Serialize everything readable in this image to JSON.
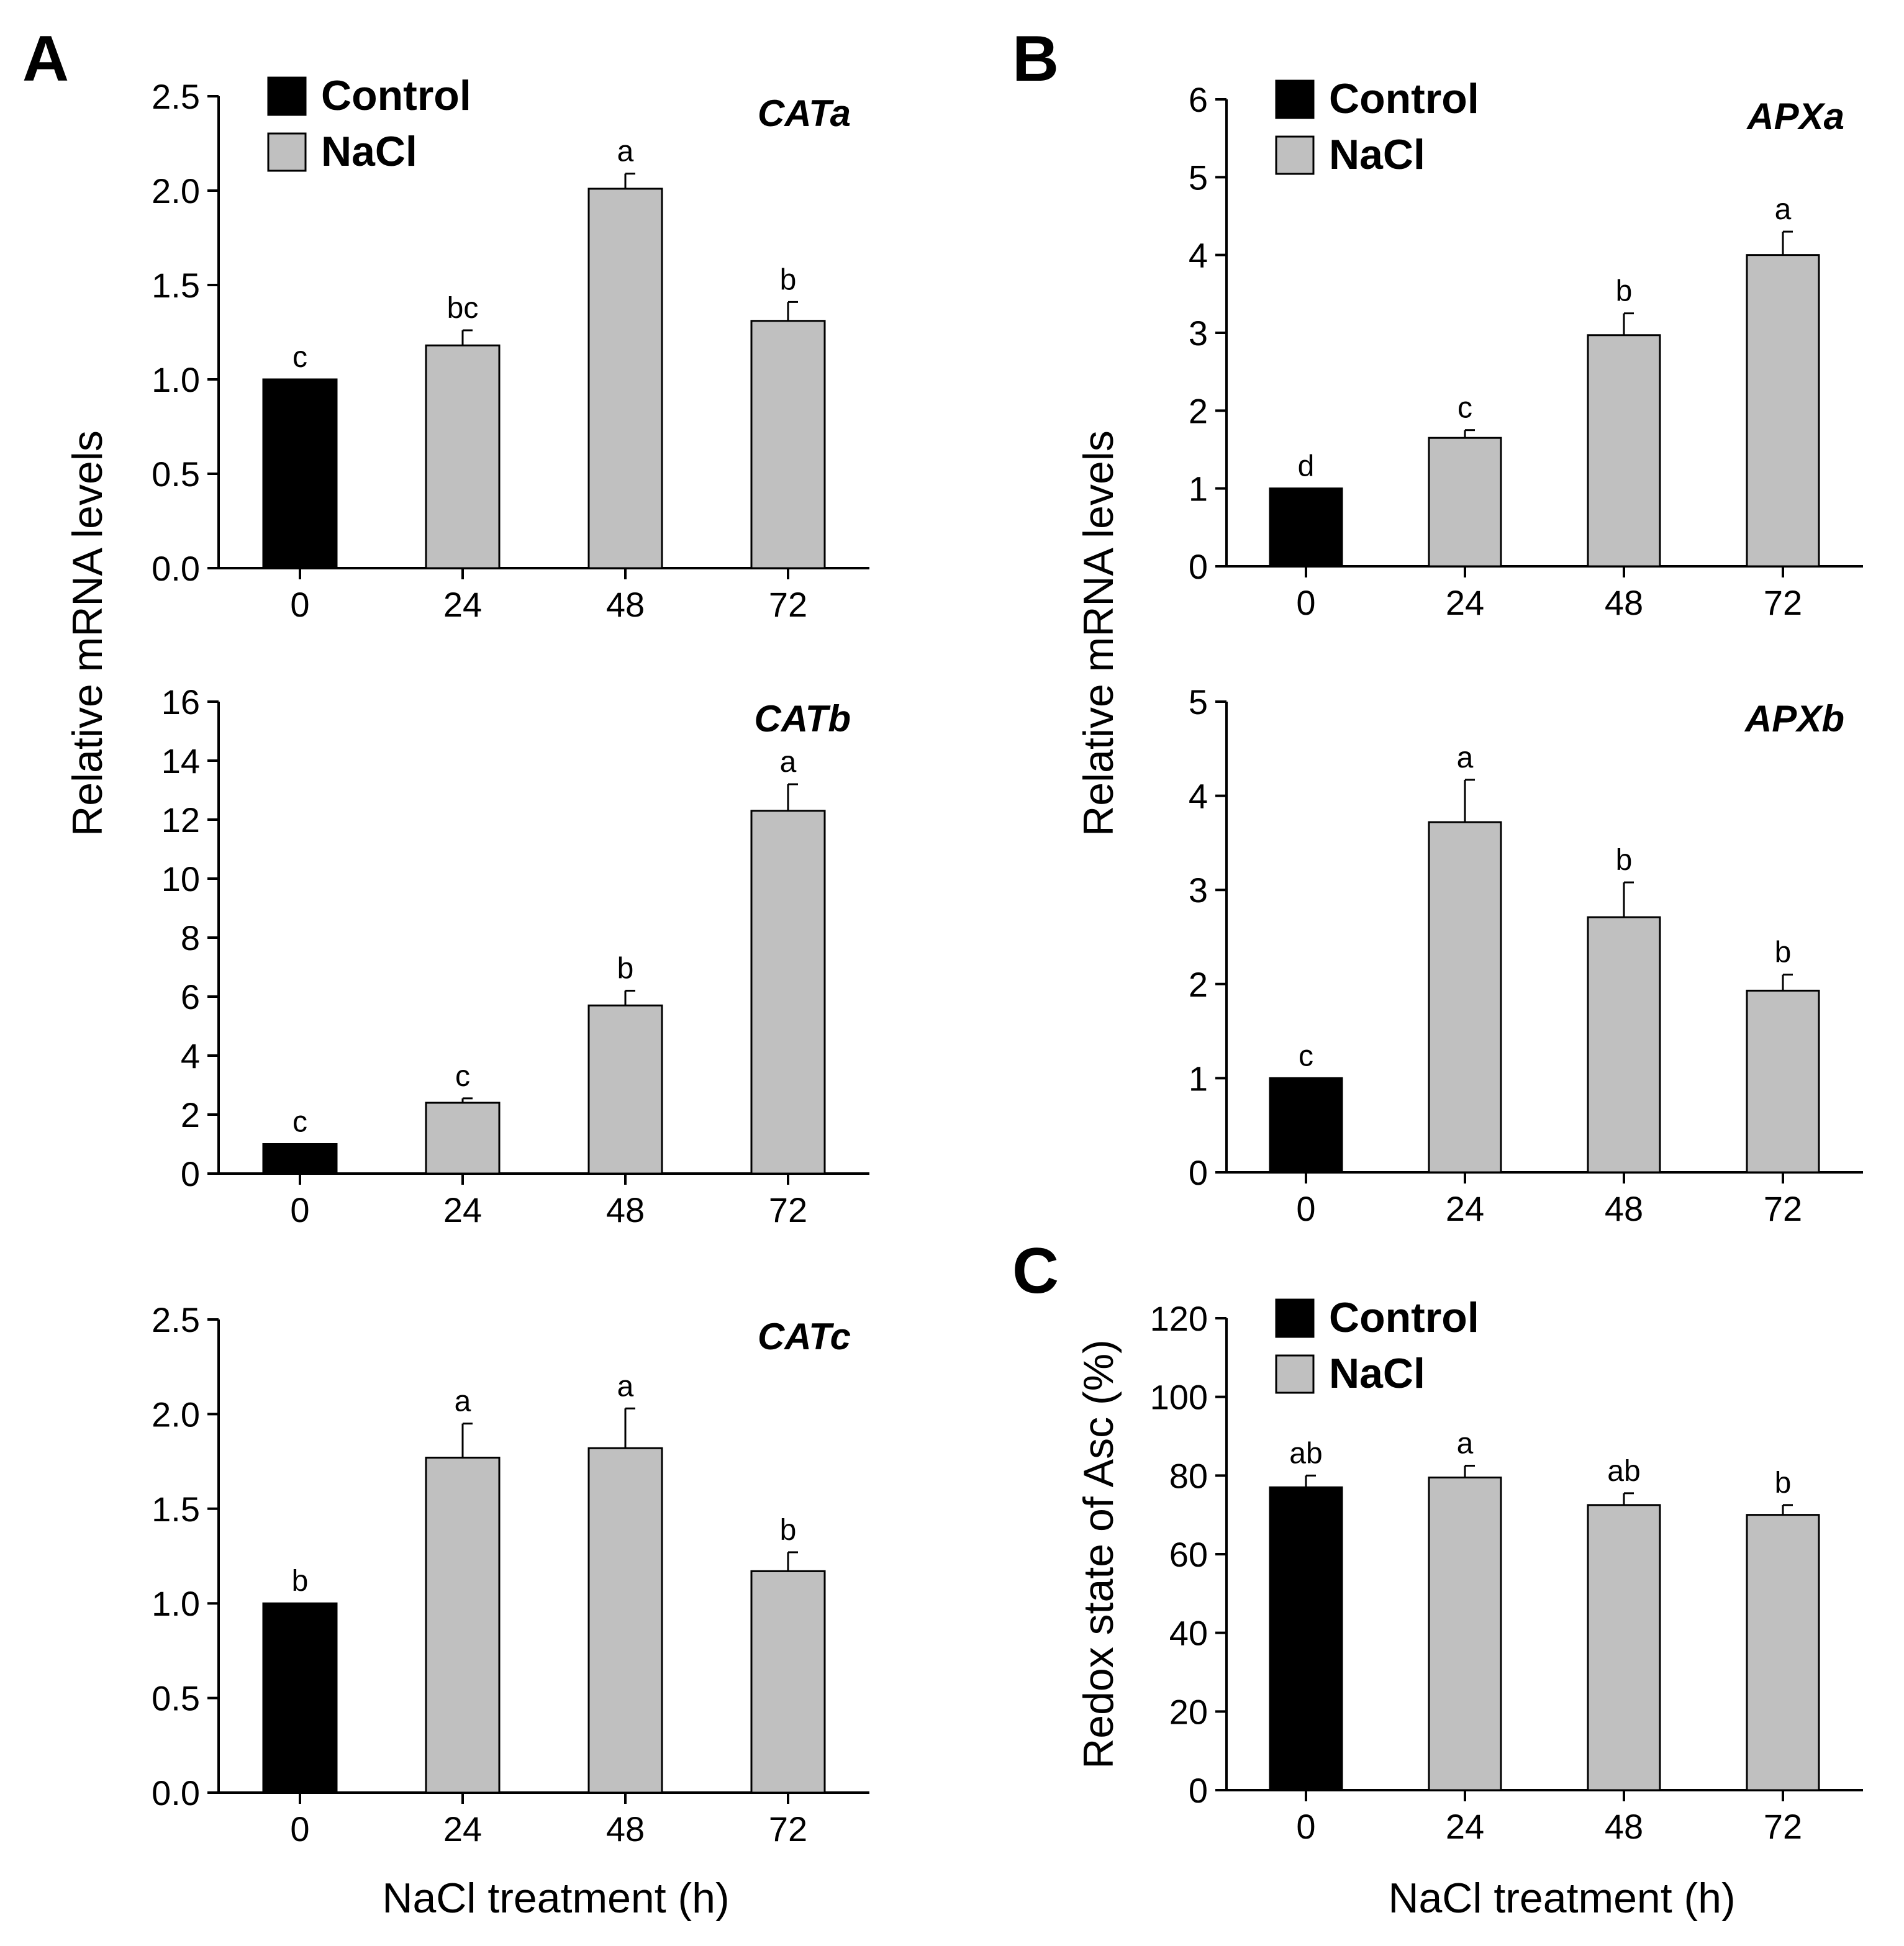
{
  "figure": {
    "panel_letters": [
      "A",
      "B",
      "C"
    ],
    "y_axis_title_left": "Relative mRNA levels",
    "y_axis_title_right": "Relative mRNA levels",
    "x_axis_title_left": "NaCl treatment (h)",
    "x_axis_title_right": "NaCl treatment (h)",
    "colors": {
      "control": "#000000",
      "nacl": "#c0c0c0",
      "axis": "#000000"
    }
  },
  "chart_data": [
    {
      "id": "CATa",
      "panel": "A",
      "type": "bar",
      "title": "CATa",
      "categories": [
        "0",
        "24",
        "48",
        "72"
      ],
      "values": [
        1.0,
        1.18,
        2.01,
        1.31
      ],
      "errors": [
        0,
        0.08,
        0.08,
        0.1
      ],
      "groups": [
        "Control",
        "NaCl",
        "NaCl",
        "NaCl"
      ],
      "significance": [
        "c",
        "bc",
        "a",
        "b"
      ],
      "ylim": [
        0,
        2.5
      ],
      "yticks": [
        "0.0",
        "0.5",
        "1.0",
        "1.5",
        "2.0",
        "2.5"
      ],
      "xlabel": "",
      "ylabel": "Relative mRNA levels",
      "legend": [
        "Control",
        "NaCl"
      ],
      "legend_position": "top-left"
    },
    {
      "id": "CATb",
      "panel": "A",
      "type": "bar",
      "title": "CATb",
      "categories": [
        "0",
        "24",
        "48",
        "72"
      ],
      "values": [
        1.0,
        2.4,
        5.7,
        12.3
      ],
      "errors": [
        0,
        0.15,
        0.5,
        0.9
      ],
      "groups": [
        "Control",
        "NaCl",
        "NaCl",
        "NaCl"
      ],
      "significance": [
        "c",
        "c",
        "b",
        "a"
      ],
      "ylim": [
        0,
        16
      ],
      "yticks": [
        "0",
        "2",
        "4",
        "6",
        "8",
        "10",
        "12",
        "14",
        "16"
      ],
      "xlabel": "",
      "ylabel": "Relative mRNA levels"
    },
    {
      "id": "CATc",
      "panel": "A",
      "type": "bar",
      "title": "CATc",
      "categories": [
        "0",
        "24",
        "48",
        "72"
      ],
      "values": [
        1.0,
        1.77,
        1.82,
        1.17
      ],
      "errors": [
        0,
        0.18,
        0.21,
        0.1
      ],
      "groups": [
        "Control",
        "NaCl",
        "NaCl",
        "NaCl"
      ],
      "significance": [
        "b",
        "a",
        "a",
        "b"
      ],
      "ylim": [
        0,
        2.5
      ],
      "yticks": [
        "0.0",
        "0.5",
        "1.0",
        "1.5",
        "2.0",
        "2.5"
      ],
      "xlabel": "NaCl treatment (h)",
      "ylabel": "Relative mRNA levels"
    },
    {
      "id": "APXa",
      "panel": "B",
      "type": "bar",
      "title": "APXa",
      "categories": [
        "0",
        "24",
        "48",
        "72"
      ],
      "values": [
        1.0,
        1.65,
        2.97,
        4.0
      ],
      "errors": [
        0,
        0.1,
        0.28,
        0.3
      ],
      "groups": [
        "Control",
        "NaCl",
        "NaCl",
        "NaCl"
      ],
      "significance": [
        "d",
        "c",
        "b",
        "a"
      ],
      "ylim": [
        0,
        6
      ],
      "yticks": [
        "0",
        "1",
        "2",
        "3",
        "4",
        "5",
        "6"
      ],
      "xlabel": "",
      "ylabel": "Relative mRNA levels",
      "legend": [
        "Control",
        "NaCl"
      ],
      "legend_position": "top-left"
    },
    {
      "id": "APXb",
      "panel": "B",
      "type": "bar",
      "title": "APXb",
      "categories": [
        "0",
        "24",
        "48",
        "72"
      ],
      "values": [
        1.0,
        3.72,
        2.71,
        1.93
      ],
      "errors": [
        0,
        0.45,
        0.37,
        0.17
      ],
      "groups": [
        "Control",
        "NaCl",
        "NaCl",
        "NaCl"
      ],
      "significance": [
        "c",
        "a",
        "b",
        "b"
      ],
      "ylim": [
        0,
        5
      ],
      "yticks": [
        "0",
        "1",
        "2",
        "3",
        "4",
        "5"
      ],
      "xlabel": "",
      "ylabel": "Relative mRNA levels"
    },
    {
      "id": "Asc",
      "panel": "C",
      "type": "bar",
      "title": "",
      "categories": [
        "0",
        "24",
        "48",
        "72"
      ],
      "values": [
        77,
        79.5,
        72.5,
        70
      ],
      "errors": [
        3,
        3,
        3,
        2.5
      ],
      "groups": [
        "Control",
        "NaCl",
        "NaCl",
        "NaCl"
      ],
      "significance": [
        "ab",
        "a",
        "ab",
        "b"
      ],
      "ylim": [
        0,
        120
      ],
      "yticks": [
        "0",
        "20",
        "40",
        "60",
        "80",
        "100",
        "120"
      ],
      "xlabel": "NaCl treatment (h)",
      "ylabel": "Redox state of Asc (%)",
      "legend": [
        "Control",
        "NaCl"
      ],
      "legend_position": "top-left"
    }
  ]
}
